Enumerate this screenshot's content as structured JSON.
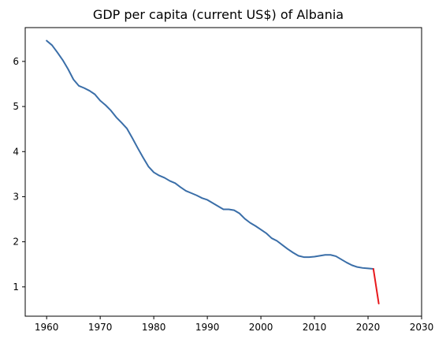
{
  "chart_data": {
    "type": "line",
    "title": "GDP per capita (current US$) of Albania",
    "xlabel": "",
    "ylabel": "",
    "xlim": [
      1956,
      2030
    ],
    "ylim": [
      0.35,
      6.75
    ],
    "x_ticks": [
      1960,
      1970,
      1980,
      1990,
      2000,
      2010,
      2020,
      2030
    ],
    "y_ticks": [
      1,
      2,
      3,
      4,
      5,
      6
    ],
    "grid": false,
    "series": [
      {
        "color": "#3a6ea8",
        "x": [
          1960,
          1961,
          1962,
          1963,
          1964,
          1965,
          1966,
          1967,
          1968,
          1969,
          1970,
          1971,
          1972,
          1973,
          1974,
          1975,
          1976,
          1977,
          1978,
          1979,
          1980,
          1981,
          1982,
          1983,
          1984,
          1985,
          1986,
          1987,
          1988,
          1989,
          1990,
          1991,
          1992,
          1993,
          1994,
          1995,
          1996,
          1997,
          1998,
          1999,
          2000,
          2001,
          2002,
          2003,
          2004,
          2005,
          2006,
          2007,
          2008,
          2009,
          2010,
          2011,
          2012,
          2013,
          2014,
          2015,
          2016,
          2017,
          2018,
          2019,
          2020,
          2021
        ],
        "values": [
          6.46,
          6.36,
          6.2,
          6.03,
          5.83,
          5.6,
          5.46,
          5.41,
          5.35,
          5.27,
          5.13,
          5.03,
          4.91,
          4.76,
          4.64,
          4.51,
          4.3,
          4.08,
          3.87,
          3.67,
          3.54,
          3.47,
          3.42,
          3.35,
          3.3,
          3.21,
          3.13,
          3.08,
          3.03,
          2.97,
          2.93,
          2.86,
          2.79,
          2.72,
          2.72,
          2.7,
          2.63,
          2.51,
          2.42,
          2.35,
          2.27,
          2.19,
          2.08,
          2.02,
          1.93,
          1.84,
          1.76,
          1.69,
          1.66,
          1.66,
          1.67,
          1.69,
          1.71,
          1.71,
          1.68,
          1.61,
          1.54,
          1.48,
          1.44,
          1.42,
          1.41,
          1.4
        ]
      },
      {
        "color": "#e8191c",
        "x": [
          2021,
          2022
        ],
        "values": [
          1.4,
          0.63
        ]
      }
    ]
  }
}
